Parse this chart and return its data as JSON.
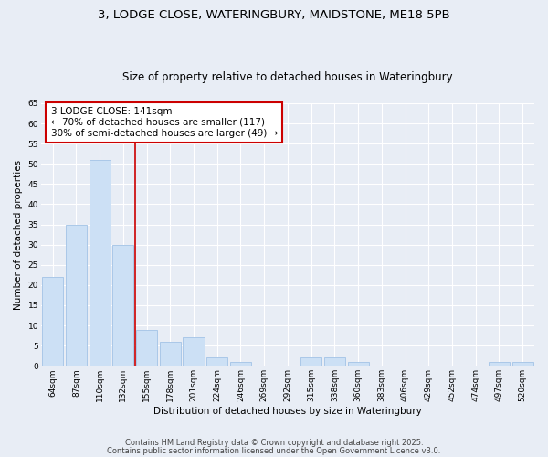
{
  "title1": "3, LODGE CLOSE, WATERINGBURY, MAIDSTONE, ME18 5PB",
  "title2": "Size of property relative to detached houses in Wateringbury",
  "xlabel": "Distribution of detached houses by size in Wateringbury",
  "ylabel": "Number of detached properties",
  "categories": [
    "64sqm",
    "87sqm",
    "110sqm",
    "132sqm",
    "155sqm",
    "178sqm",
    "201sqm",
    "224sqm",
    "246sqm",
    "269sqm",
    "292sqm",
    "315sqm",
    "338sqm",
    "360sqm",
    "383sqm",
    "406sqm",
    "429sqm",
    "452sqm",
    "474sqm",
    "497sqm",
    "520sqm"
  ],
  "values": [
    22,
    35,
    51,
    30,
    9,
    6,
    7,
    2,
    1,
    0,
    0,
    2,
    2,
    1,
    0,
    0,
    0,
    0,
    0,
    1,
    1
  ],
  "bar_color": "#cce0f5",
  "bar_edge_color": "#aac8e8",
  "background_color": "#e8edf5",
  "grid_color": "#ffffff",
  "vline_x": 3.5,
  "vline_color": "#cc0000",
  "annotation_text": "3 LODGE CLOSE: 141sqm\n← 70% of detached houses are smaller (117)\n30% of semi-detached houses are larger (49) →",
  "annotation_box_facecolor": "#ffffff",
  "annotation_box_edgecolor": "#cc0000",
  "ylim": [
    0,
    65
  ],
  "yticks": [
    0,
    5,
    10,
    15,
    20,
    25,
    30,
    35,
    40,
    45,
    50,
    55,
    60,
    65
  ],
  "footer1": "Contains HM Land Registry data © Crown copyright and database right 2025.",
  "footer2": "Contains public sector information licensed under the Open Government Licence v3.0.",
  "title_fontsize": 9.5,
  "subtitle_fontsize": 8.5,
  "axis_label_fontsize": 7.5,
  "tick_fontsize": 6.5,
  "annotation_fontsize": 7.5,
  "footer_fontsize": 6.0
}
